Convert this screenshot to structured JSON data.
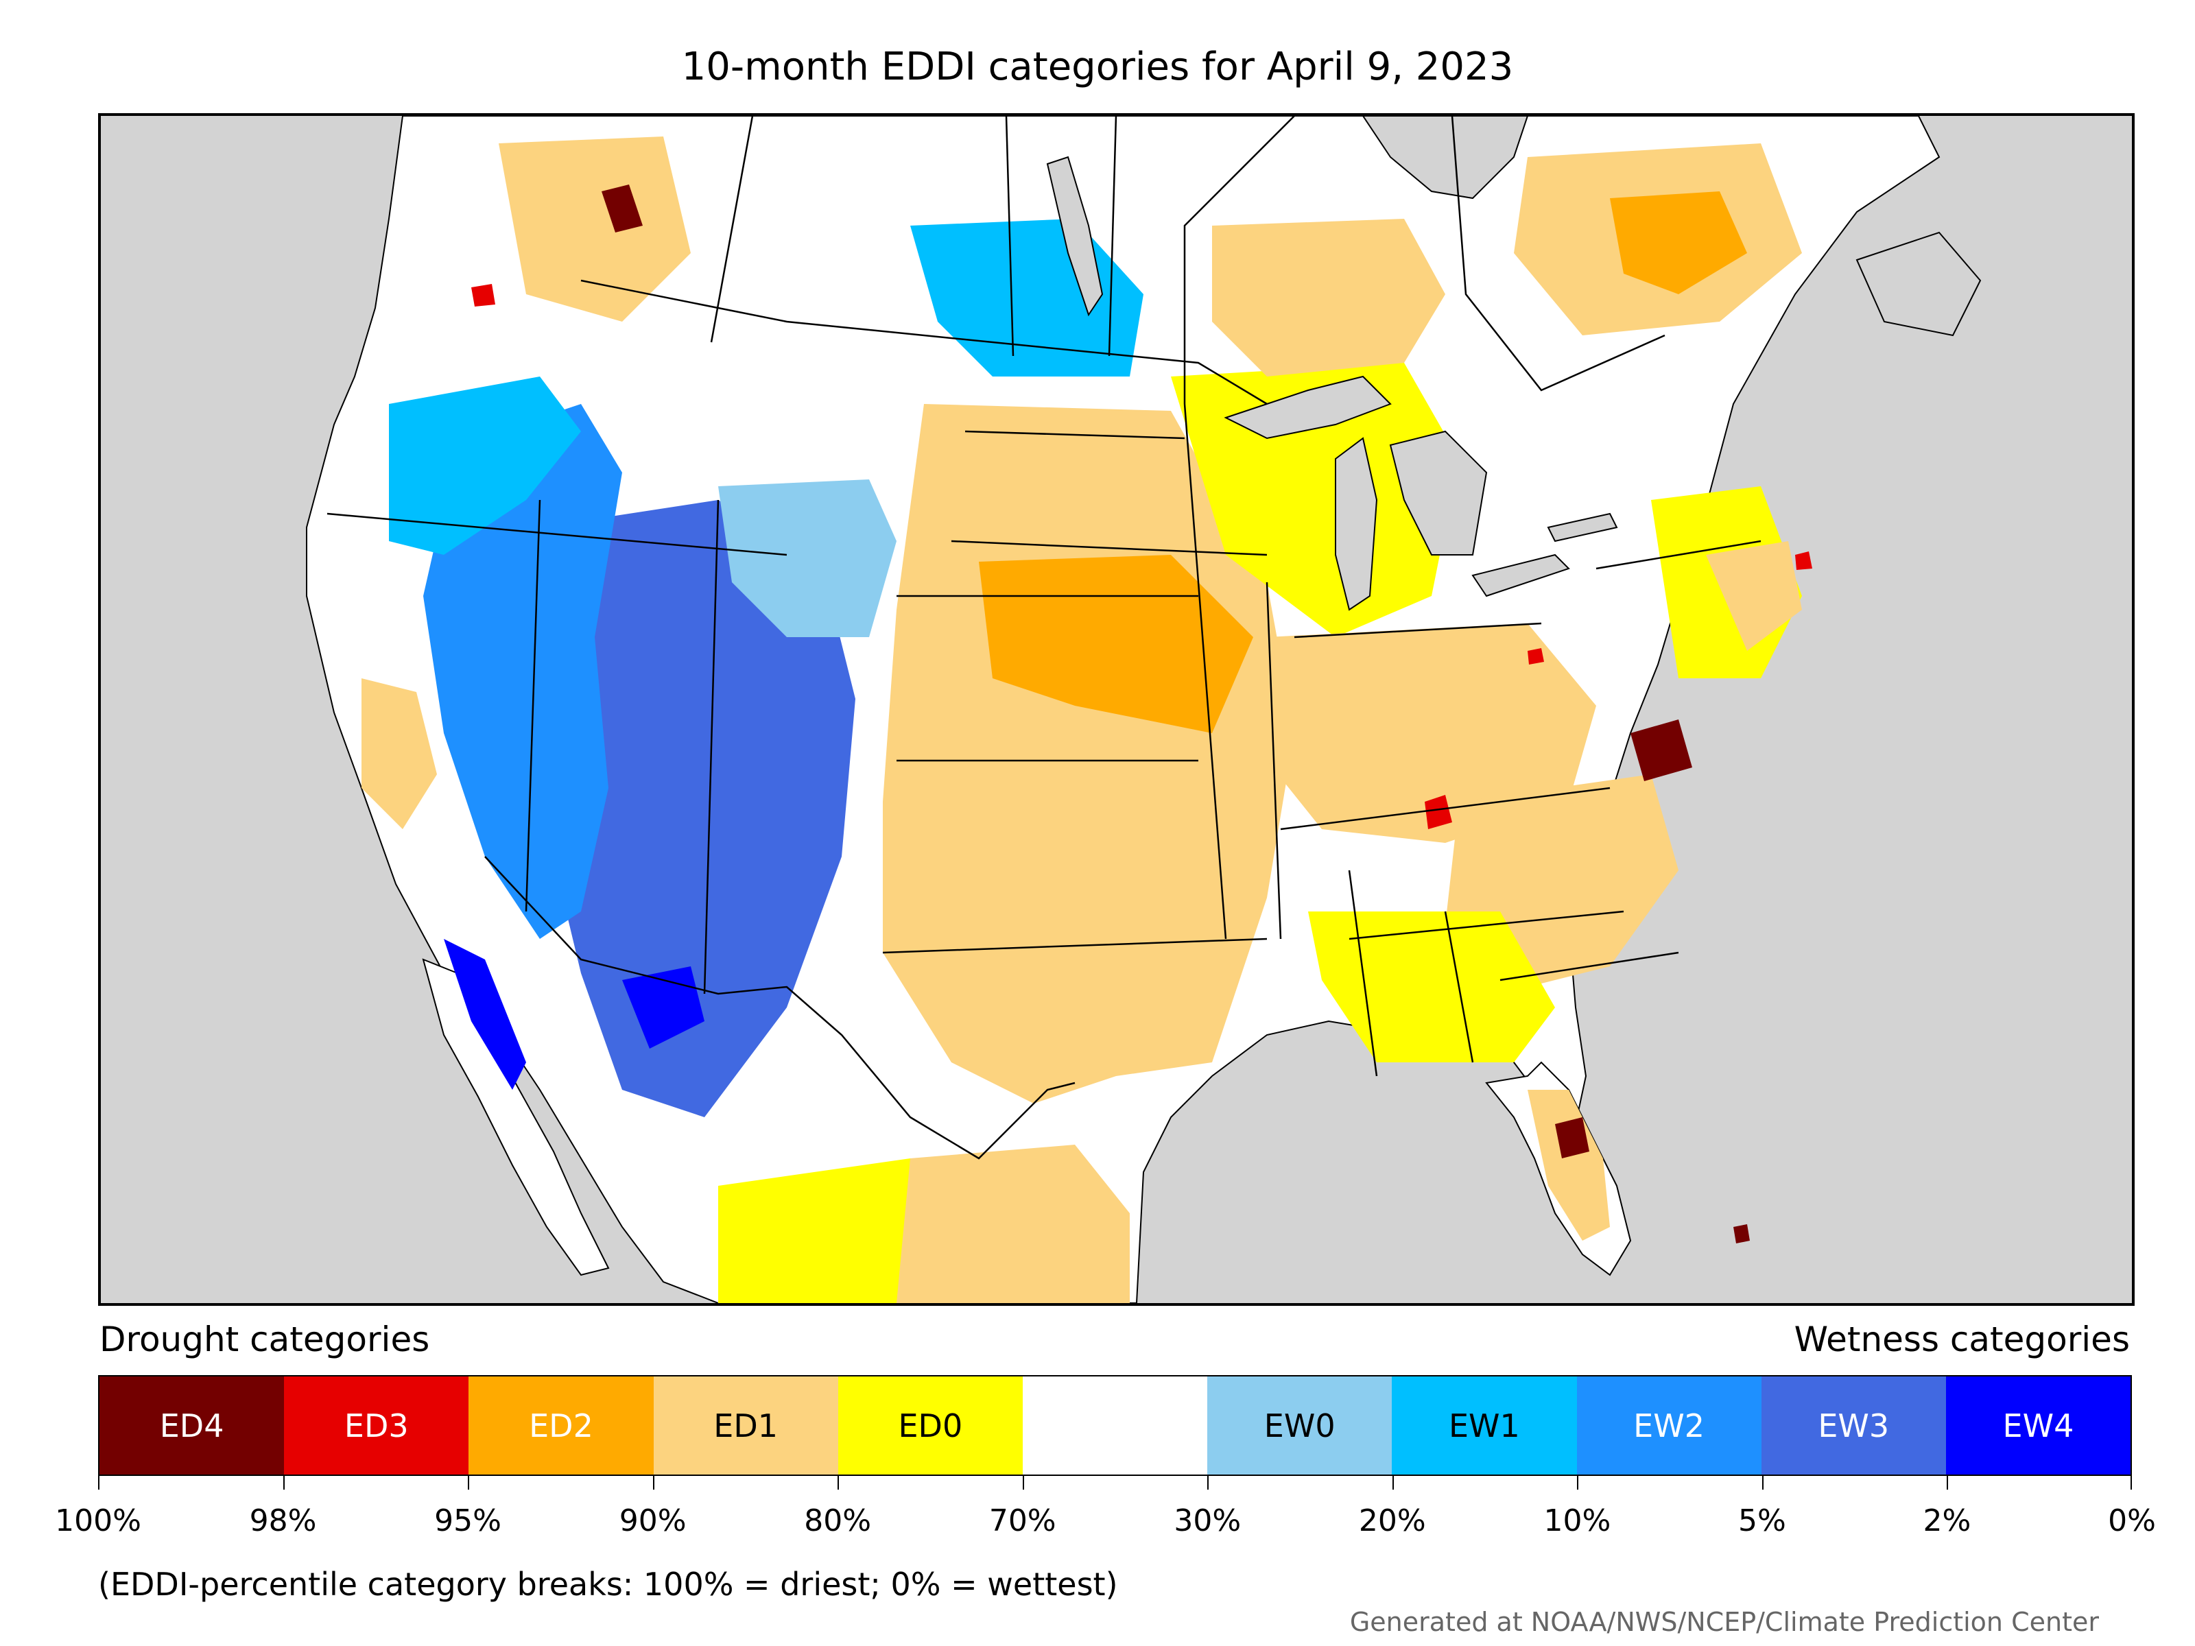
{
  "title": "10-month EDDI categories for April 9, 2023",
  "map": {
    "land_color": "#ffffff",
    "water_color": "#d3d3d3",
    "category_regions": [
      {
        "category": "EW3",
        "area": "Great Basin and Arizona"
      },
      {
        "category": "EW2",
        "area": "Nevada, Utah, California interior"
      },
      {
        "category": "EW1",
        "area": "Oregon, Idaho and southern Manitoba"
      },
      {
        "category": "EW4",
        "area": "Baja California and scattered Utah/Arizona spots"
      },
      {
        "category": "EW0",
        "area": "Mountain West edges, Colorado and Wyoming"
      },
      {
        "category": "ED1",
        "area": "Great Plains, Texas, Ohio Valley, Carolinas, northern Mexico, Quebec, Ontario"
      },
      {
        "category": "ED2",
        "area": "Nebraska, Iowa, Kansas core"
      },
      {
        "category": "ED0",
        "area": "Gulf Coast, upper Midwest, Northeast margins, Mexico"
      },
      {
        "category": "ED4",
        "area": "Virginia, central Florida, British Columbia, Bahamas"
      },
      {
        "category": "ED3",
        "area": "Kentucky, Rhode Island, Ohio and spot in Washington"
      }
    ]
  },
  "legend": {
    "drought_heading": "Drought categories",
    "wetness_heading": "Wetness categories",
    "categories": [
      {
        "label": "ED4",
        "color": "#730000",
        "text_color": "#ffffff"
      },
      {
        "label": "ED3",
        "color": "#e60000",
        "text_color": "#ffffff"
      },
      {
        "label": "ED2",
        "color": "#ffaa00",
        "text_color": "#ffffff"
      },
      {
        "label": "ED1",
        "color": "#fcd37f",
        "text_color": "#000000"
      },
      {
        "label": "ED0",
        "color": "#ffff00",
        "text_color": "#000000"
      },
      {
        "label": "",
        "color": "#ffffff",
        "text_color": "#000000"
      },
      {
        "label": "EW0",
        "color": "#8ccdef",
        "text_color": "#000000"
      },
      {
        "label": "EW1",
        "color": "#00bfff",
        "text_color": "#000000"
      },
      {
        "label": "EW2",
        "color": "#1e90ff",
        "text_color": "#ffffff"
      },
      {
        "label": "EW3",
        "color": "#4169e1",
        "text_color": "#ffffff"
      },
      {
        "label": "EW4",
        "color": "#0000ff",
        "text_color": "#ffffff"
      }
    ],
    "breaks": [
      "100%",
      "98%",
      "95%",
      "90%",
      "80%",
      "70%",
      "30%",
      "20%",
      "10%",
      "5%",
      "2%",
      "0%"
    ]
  },
  "note": "(EDDI-percentile category breaks: 100% = driest; 0% = wettest)",
  "credit": "Generated at NOAA/NWS/NCEP/Climate Prediction Center"
}
